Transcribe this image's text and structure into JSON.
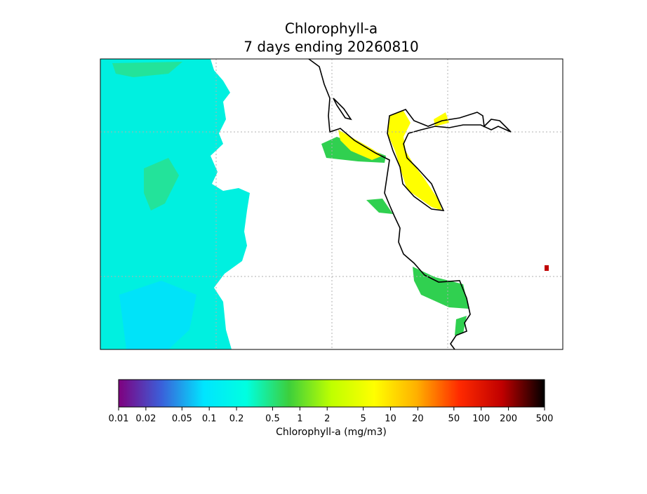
{
  "chart_data": {
    "type": "colorbar",
    "title": "Chlorophyll-a",
    "subtitle": "7 days ending 20260810",
    "xlabel": "Chlorophyll-a (mg/m3)",
    "log_scale": true,
    "xlim": [
      0.01,
      500
    ],
    "xticks": [
      0.01,
      0.02,
      0.05,
      0.1,
      0.2,
      0.5,
      1,
      2,
      5,
      10,
      20,
      50,
      100,
      200,
      500
    ],
    "colormap": [
      "#7f007f",
      "#3b5fd9",
      "#00e5ff",
      "#00ffe0",
      "#3ccf3c",
      "#bfff00",
      "#ffff00",
      "#ffb000",
      "#ff2a00",
      "#c00000",
      "#000000"
    ]
  }
}
